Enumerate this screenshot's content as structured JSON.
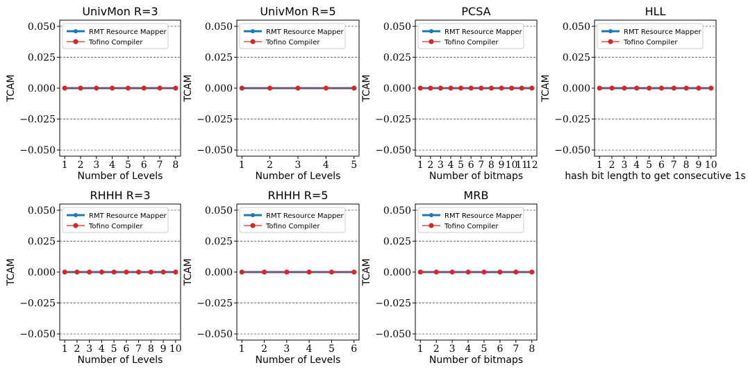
{
  "colors": {
    "rmt": "#1f77b4",
    "tofino": "#d62728",
    "grid": "#555555"
  },
  "legend": {
    "placement": "top-left",
    "entries": [
      "RMT Resource Mapper",
      "Tofino Compiler"
    ]
  },
  "chart_data": [
    {
      "type": "line",
      "title": "UnivMon R=3",
      "xlabel": "Number of Levels",
      "ylabel": "TCAM",
      "x": [
        1,
        2,
        3,
        4,
        5,
        6,
        7,
        8
      ],
      "xtick_labels": [
        "1",
        "2",
        "3",
        "4",
        "5",
        "6",
        "7",
        "8"
      ],
      "ylim": [
        -0.055,
        0.055
      ],
      "yticks": [
        -0.05,
        -0.025,
        0,
        0.025,
        0.05
      ],
      "ytick_labels": [
        "−0.050",
        "−0.025",
        "0.000",
        "0.025",
        "0.050"
      ],
      "grid": true,
      "series": [
        {
          "name": "RMT Resource Mapper",
          "values": [
            0,
            0,
            0,
            0,
            0,
            0,
            0,
            0
          ]
        },
        {
          "name": "Tofino Compiler",
          "values": [
            0,
            0,
            0,
            0,
            0,
            0,
            0,
            0
          ]
        }
      ]
    },
    {
      "type": "line",
      "title": "UnivMon R=5",
      "xlabel": "Number of Levels",
      "ylabel": "TCAM",
      "x": [
        1,
        2,
        3,
        4,
        5
      ],
      "xtick_labels": [
        "1",
        "2",
        "3",
        "4",
        "5"
      ],
      "ylim": [
        -0.055,
        0.055
      ],
      "yticks": [
        -0.05,
        -0.025,
        0,
        0.025,
        0.05
      ],
      "ytick_labels": [
        "−0.050",
        "−0.025",
        "0.000",
        "0.025",
        "0.050"
      ],
      "grid": true,
      "series": [
        {
          "name": "RMT Resource Mapper",
          "values": [
            0,
            0,
            0,
            0,
            0
          ]
        },
        {
          "name": "Tofino Compiler",
          "values": [
            0,
            0,
            0,
            0,
            0
          ]
        }
      ]
    },
    {
      "type": "line",
      "title": "PCSA",
      "xlabel": "Number of bitmaps",
      "ylabel": "TCAM",
      "x": [
        1,
        2,
        3,
        4,
        5,
        6,
        7,
        8,
        9,
        10,
        11,
        12
      ],
      "xtick_labels": [
        "1",
        "2",
        "3",
        "4",
        "5",
        "6",
        "7",
        "8",
        "9",
        "10",
        "11",
        "12"
      ],
      "ylim": [
        -0.055,
        0.055
      ],
      "yticks": [
        -0.05,
        -0.025,
        0,
        0.025,
        0.05
      ],
      "ytick_labels": [
        "−0.050",
        "−0.025",
        "0.000",
        "0.025",
        "0.050"
      ],
      "grid": true,
      "series": [
        {
          "name": "RMT Resource Mapper",
          "values": [
            0,
            0,
            0,
            0,
            0,
            0,
            0,
            0,
            0,
            0,
            0,
            0
          ]
        },
        {
          "name": "Tofino Compiler",
          "values": [
            0,
            0,
            0,
            0,
            0,
            0,
            0,
            0,
            0,
            0,
            0,
            0
          ]
        }
      ]
    },
    {
      "type": "line",
      "title": "HLL",
      "xlabel": "hash bit length to get consecutive 1s",
      "ylabel": "TCAM",
      "x": [
        1,
        2,
        3,
        4,
        5,
        6,
        7,
        8,
        9,
        10
      ],
      "xtick_labels": [
        "1",
        "2",
        "3",
        "4",
        "5",
        "6",
        "7",
        "8",
        "9",
        "10"
      ],
      "ylim": [
        -0.055,
        0.055
      ],
      "yticks": [
        -0.05,
        -0.025,
        0,
        0.025,
        0.05
      ],
      "ytick_labels": [
        "−0.050",
        "−0.025",
        "0.000",
        "0.025",
        "0.050"
      ],
      "grid": true,
      "series": [
        {
          "name": "RMT Resource Mapper",
          "values": [
            0,
            0,
            0,
            0,
            0,
            0,
            0,
            0,
            0,
            0
          ]
        },
        {
          "name": "Tofino Compiler",
          "values": [
            0,
            0,
            0,
            0,
            0,
            0,
            0,
            0,
            0,
            0
          ]
        }
      ]
    },
    {
      "type": "line",
      "title": "RHHH R=3",
      "xlabel": "Number of Levels",
      "ylabel": "TCAM",
      "x": [
        1,
        2,
        3,
        4,
        5,
        6,
        7,
        8,
        9,
        10
      ],
      "xtick_labels": [
        "1",
        "2",
        "3",
        "4",
        "5",
        "6",
        "7",
        "8",
        "9",
        "10"
      ],
      "ylim": [
        -0.055,
        0.055
      ],
      "yticks": [
        -0.05,
        -0.025,
        0,
        0.025,
        0.05
      ],
      "ytick_labels": [
        "−0.050",
        "−0.025",
        "0.000",
        "0.025",
        "0.050"
      ],
      "grid": true,
      "series": [
        {
          "name": "RMT Resource Mapper",
          "values": [
            0,
            0,
            0,
            0,
            0,
            0,
            0,
            0,
            0,
            0
          ]
        },
        {
          "name": "Tofino Compiler",
          "values": [
            0,
            0,
            0,
            0,
            0,
            0,
            0,
            0,
            0,
            0
          ]
        }
      ]
    },
    {
      "type": "line",
      "title": "RHHH R=5",
      "xlabel": "Number of Levels",
      "ylabel": "TCAM",
      "x": [
        1,
        2,
        3,
        4,
        5,
        6
      ],
      "xtick_labels": [
        "1",
        "2",
        "3",
        "4",
        "5",
        "6"
      ],
      "ylim": [
        -0.055,
        0.055
      ],
      "yticks": [
        -0.05,
        -0.025,
        0,
        0.025,
        0.05
      ],
      "ytick_labels": [
        "−0.050",
        "−0.025",
        "0.000",
        "0.025",
        "0.050"
      ],
      "grid": true,
      "series": [
        {
          "name": "RMT Resource Mapper",
          "values": [
            0,
            0,
            0,
            0,
            0,
            0
          ]
        },
        {
          "name": "Tofino Compiler",
          "values": [
            0,
            0,
            0,
            0,
            0,
            0
          ]
        }
      ]
    },
    {
      "type": "line",
      "title": "MRB",
      "xlabel": "Number of bitmaps",
      "ylabel": "TCAM",
      "x": [
        1,
        2,
        3,
        4,
        5,
        6,
        7,
        8
      ],
      "xtick_labels": [
        "1",
        "2",
        "3",
        "4",
        "5",
        "6",
        "7",
        "8"
      ],
      "ylim": [
        -0.055,
        0.055
      ],
      "yticks": [
        -0.05,
        -0.025,
        0,
        0.025,
        0.05
      ],
      "ytick_labels": [
        "−0.050",
        "−0.025",
        "0.000",
        "0.025",
        "0.050"
      ],
      "grid": true,
      "series": [
        {
          "name": "RMT Resource Mapper",
          "values": [
            0,
            0,
            0,
            0,
            0,
            0,
            0,
            0
          ]
        },
        {
          "name": "Tofino Compiler",
          "values": [
            0,
            0,
            0,
            0,
            0,
            0,
            0,
            0
          ]
        }
      ]
    }
  ]
}
